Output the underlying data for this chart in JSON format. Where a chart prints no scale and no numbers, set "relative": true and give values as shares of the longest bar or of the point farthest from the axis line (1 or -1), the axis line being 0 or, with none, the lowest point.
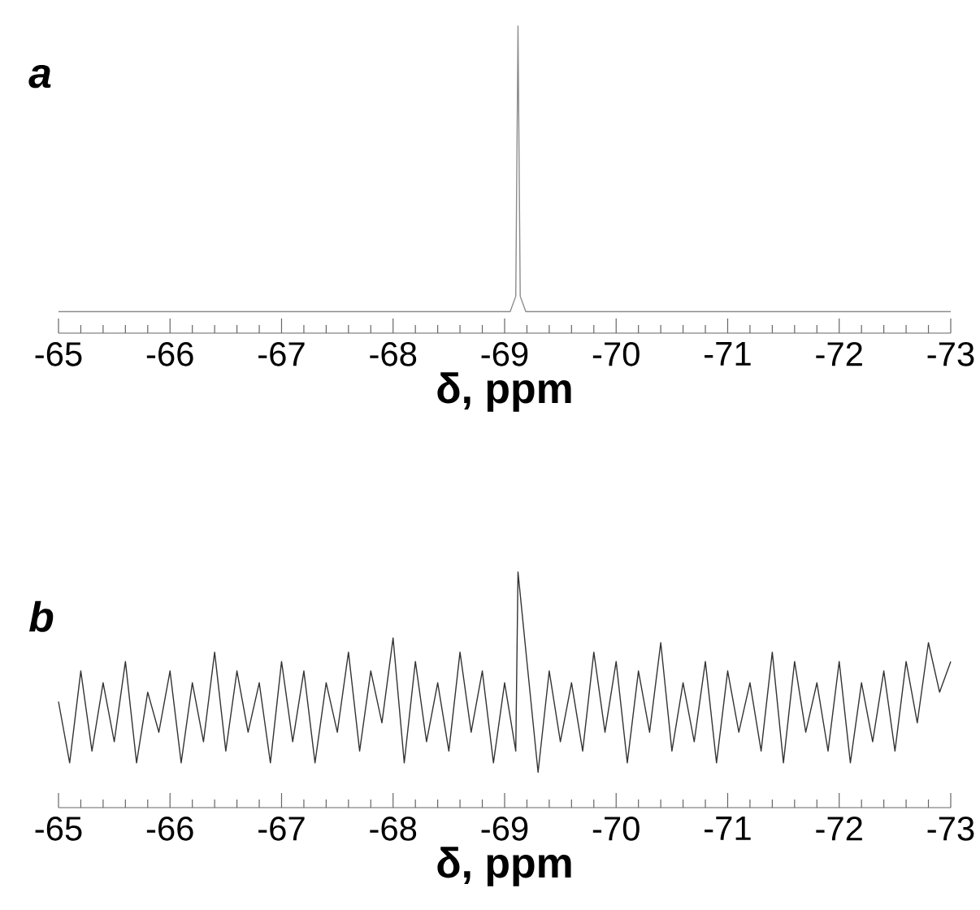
{
  "chart_data": [
    {
      "type": "line",
      "title": "a",
      "xlabel": "δ, ppm",
      "relative": true,
      "color": "#8c8c8c",
      "x": [
        -65.0,
        -69.05,
        -69.1,
        -69.12,
        -69.14,
        -69.19,
        -73.0
      ],
      "values": [
        0.07,
        0.07,
        0.12,
        1,
        0.12,
        0.07,
        0.07
      ],
      "xlim": [
        -65,
        -73
      ],
      "xticks": [
        -65,
        -66,
        -67,
        -68,
        -69,
        -70,
        -71,
        -72,
        -73
      ]
    },
    {
      "type": "line",
      "title": "b",
      "xlabel": "δ, ppm",
      "relative": true,
      "color": "#333333",
      "x": [
        -65.0,
        -65.1,
        -65.2,
        -65.3,
        -65.4,
        -65.5,
        -65.6,
        -65.7,
        -65.8,
        -65.9,
        -66.0,
        -66.1,
        -66.2,
        -66.3,
        -66.4,
        -66.5,
        -66.6,
        -66.7,
        -66.8,
        -66.9,
        -67.0,
        -67.1,
        -67.2,
        -67.3,
        -67.4,
        -67.5,
        -67.6,
        -67.7,
        -67.8,
        -67.9,
        -68.0,
        -68.1,
        -68.2,
        -68.3,
        -68.4,
        -68.5,
        -68.6,
        -68.7,
        -68.8,
        -68.9,
        -69.0,
        -69.1,
        -69.12,
        -69.2,
        -69.3,
        -69.4,
        -69.5,
        -69.6,
        -69.7,
        -69.8,
        -69.9,
        -70.0,
        -70.1,
        -70.2,
        -70.3,
        -70.4,
        -70.5,
        -70.6,
        -70.7,
        -70.8,
        -70.9,
        -71.0,
        -71.1,
        -71.2,
        -71.3,
        -71.4,
        -71.5,
        -71.6,
        -71.7,
        -71.8,
        -71.9,
        -72.0,
        -72.1,
        -72.2,
        -72.3,
        -72.4,
        -72.5,
        -72.6,
        -72.7,
        -72.8,
        -72.9,
        -73.0
      ],
      "values": [
        0.45,
        0.19,
        0.58,
        0.24,
        0.53,
        0.28,
        0.62,
        0.19,
        0.49,
        0.32,
        0.58,
        0.19,
        0.53,
        0.28,
        0.66,
        0.24,
        0.58,
        0.32,
        0.53,
        0.19,
        0.62,
        0.28,
        0.58,
        0.19,
        0.53,
        0.32,
        0.66,
        0.24,
        0.58,
        0.36,
        0.72,
        0.19,
        0.62,
        0.28,
        0.53,
        0.24,
        0.66,
        0.32,
        0.58,
        0.19,
        0.53,
        0.24,
        1.0,
        0.62,
        0.15,
        0.58,
        0.28,
        0.53,
        0.24,
        0.66,
        0.32,
        0.62,
        0.19,
        0.58,
        0.32,
        0.7,
        0.24,
        0.53,
        0.28,
        0.62,
        0.19,
        0.58,
        0.32,
        0.53,
        0.24,
        0.66,
        0.19,
        0.62,
        0.32,
        0.53,
        0.24,
        0.62,
        0.19,
        0.53,
        0.28,
        0.58,
        0.24,
        0.62,
        0.36,
        0.7,
        0.49,
        0.62
      ],
      "xlim": [
        -65,
        -73
      ],
      "xticks": [
        -65,
        -66,
        -67,
        -68,
        -69,
        -70,
        -71,
        -72,
        -73
      ]
    }
  ]
}
